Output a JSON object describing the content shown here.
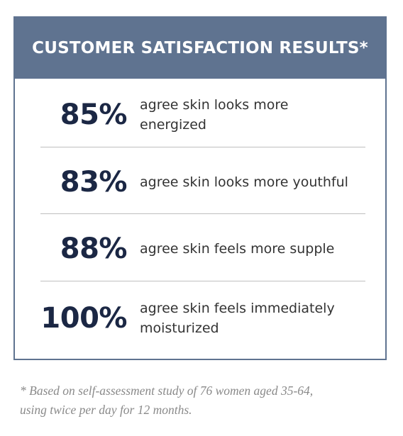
{
  "header": {
    "title": "CUSTOMER SATISFACTION RESULTS*"
  },
  "results": [
    {
      "percent": "85%",
      "text": "agree skin looks more energized"
    },
    {
      "percent": "83%",
      "text": "agree skin looks more youthful"
    },
    {
      "percent": "88%",
      "text": "agree skin feels more supple"
    },
    {
      "percent": "100%",
      "text": "agree skin feels immediately moisturized"
    }
  ],
  "footnote": {
    "line1": "* Based on self-assessment study of 76 women aged 35-64,",
    "line2": "using twice per day for 12 months."
  },
  "colors": {
    "header_bg": "#5f7390",
    "percent_text": "#1b2744",
    "divider": "#bfbfbf",
    "footnote_text": "#8a8a8a"
  }
}
